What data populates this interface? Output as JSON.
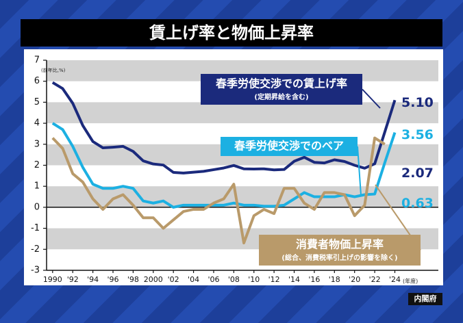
{
  "chart_data": {
    "type": "line",
    "title": "賃上げ率と物価上昇率",
    "y_label": "(前年比,%)",
    "x_label": "(年度)",
    "source": "内閣府",
    "x": [
      1990,
      1991,
      1992,
      1993,
      1994,
      1995,
      1996,
      1997,
      1998,
      1999,
      2000,
      2001,
      2002,
      2003,
      2004,
      2005,
      2006,
      2007,
      2008,
      2009,
      2010,
      2011,
      2012,
      2013,
      2014,
      2015,
      2016,
      2017,
      2018,
      2019,
      2020,
      2021,
      2022,
      2023,
      2024
    ],
    "series": [
      {
        "name": "春季労使交渉での賃上げ率",
        "note": "(定期昇給を含む)",
        "color": "#1b2a7c",
        "values": [
          5.94,
          5.65,
          4.95,
          3.89,
          3.13,
          2.83,
          2.86,
          2.9,
          2.66,
          2.21,
          2.06,
          2.01,
          1.66,
          1.63,
          1.67,
          1.71,
          1.79,
          1.87,
          1.99,
          1.83,
          1.82,
          1.83,
          1.78,
          1.8,
          2.19,
          2.38,
          2.14,
          2.11,
          2.26,
          2.18,
          2.0,
          1.86,
          2.07,
          3.58,
          5.1
        ],
        "value_labels": [
          null,
          null,
          null,
          null,
          null,
          null,
          null,
          null,
          null,
          null,
          null,
          null,
          null,
          null,
          null,
          null,
          null,
          null,
          null,
          null,
          null,
          null,
          null,
          null,
          null,
          null,
          null,
          null,
          null,
          null,
          null,
          null,
          "2.07",
          null,
          "5.10"
        ]
      },
      {
        "name": "春季労使交渉でのベア",
        "color": "#1cb0e2",
        "values": [
          4.0,
          3.7,
          2.9,
          1.9,
          1.1,
          0.9,
          0.9,
          1.0,
          0.9,
          0.3,
          0.2,
          0.3,
          0.0,
          0.1,
          0.1,
          0.1,
          0.1,
          0.1,
          0.2,
          0.1,
          0.1,
          0.05,
          0.05,
          0.1,
          0.4,
          0.7,
          0.5,
          0.5,
          0.5,
          0.6,
          0.5,
          0.6,
          0.63,
          2.12,
          3.56
        ],
        "value_labels": [
          null,
          null,
          null,
          null,
          null,
          null,
          null,
          null,
          null,
          null,
          null,
          null,
          null,
          null,
          null,
          null,
          null,
          null,
          null,
          null,
          null,
          null,
          null,
          null,
          null,
          null,
          null,
          null,
          null,
          null,
          null,
          null,
          "0.63",
          null,
          "3.56"
        ]
      },
      {
        "name": "消費者物価上昇率",
        "note": "(総合、消費税率引上げの影響を除く)",
        "color": "#b99a6a",
        "values": [
          3.3,
          2.8,
          1.6,
          1.2,
          0.4,
          -0.1,
          0.4,
          0.6,
          0.1,
          -0.5,
          -0.5,
          -1.0,
          -0.6,
          -0.2,
          -0.1,
          -0.1,
          0.2,
          0.4,
          1.1,
          -1.7,
          -0.4,
          -0.1,
          -0.3,
          0.9,
          0.9,
          0.2,
          -0.1,
          0.7,
          0.7,
          0.6,
          -0.4,
          0.1,
          3.3,
          3.0,
          null
        ]
      }
    ],
    "xlim": [
      1989.4,
      2025.6
    ],
    "xticks": [
      {
        "value": 1990,
        "label": "1990"
      },
      {
        "value": 1992,
        "label": "'92"
      },
      {
        "value": 1994,
        "label": "'94"
      },
      {
        "value": 1996,
        "label": "'96"
      },
      {
        "value": 1998,
        "label": "'98"
      },
      {
        "value": 2000,
        "label": "2000"
      },
      {
        "value": 2002,
        "label": "'02"
      },
      {
        "value": 2004,
        "label": "'04"
      },
      {
        "value": 2006,
        "label": "'06"
      },
      {
        "value": 2008,
        "label": "'08"
      },
      {
        "value": 2010,
        "label": "'10"
      },
      {
        "value": 2012,
        "label": "'12"
      },
      {
        "value": 2014,
        "label": "'14"
      },
      {
        "value": 2016,
        "label": "'16"
      },
      {
        "value": 2018,
        "label": "'18"
      },
      {
        "value": 2020,
        "label": "'20"
      },
      {
        "value": 2022,
        "label": "'22"
      },
      {
        "value": 2024,
        "label": "'24"
      }
    ],
    "ylim": [
      -3,
      7
    ],
    "yticks": [
      -3,
      -2,
      -1,
      0,
      1,
      2,
      3,
      4,
      5,
      6,
      7
    ],
    "grid": true
  }
}
